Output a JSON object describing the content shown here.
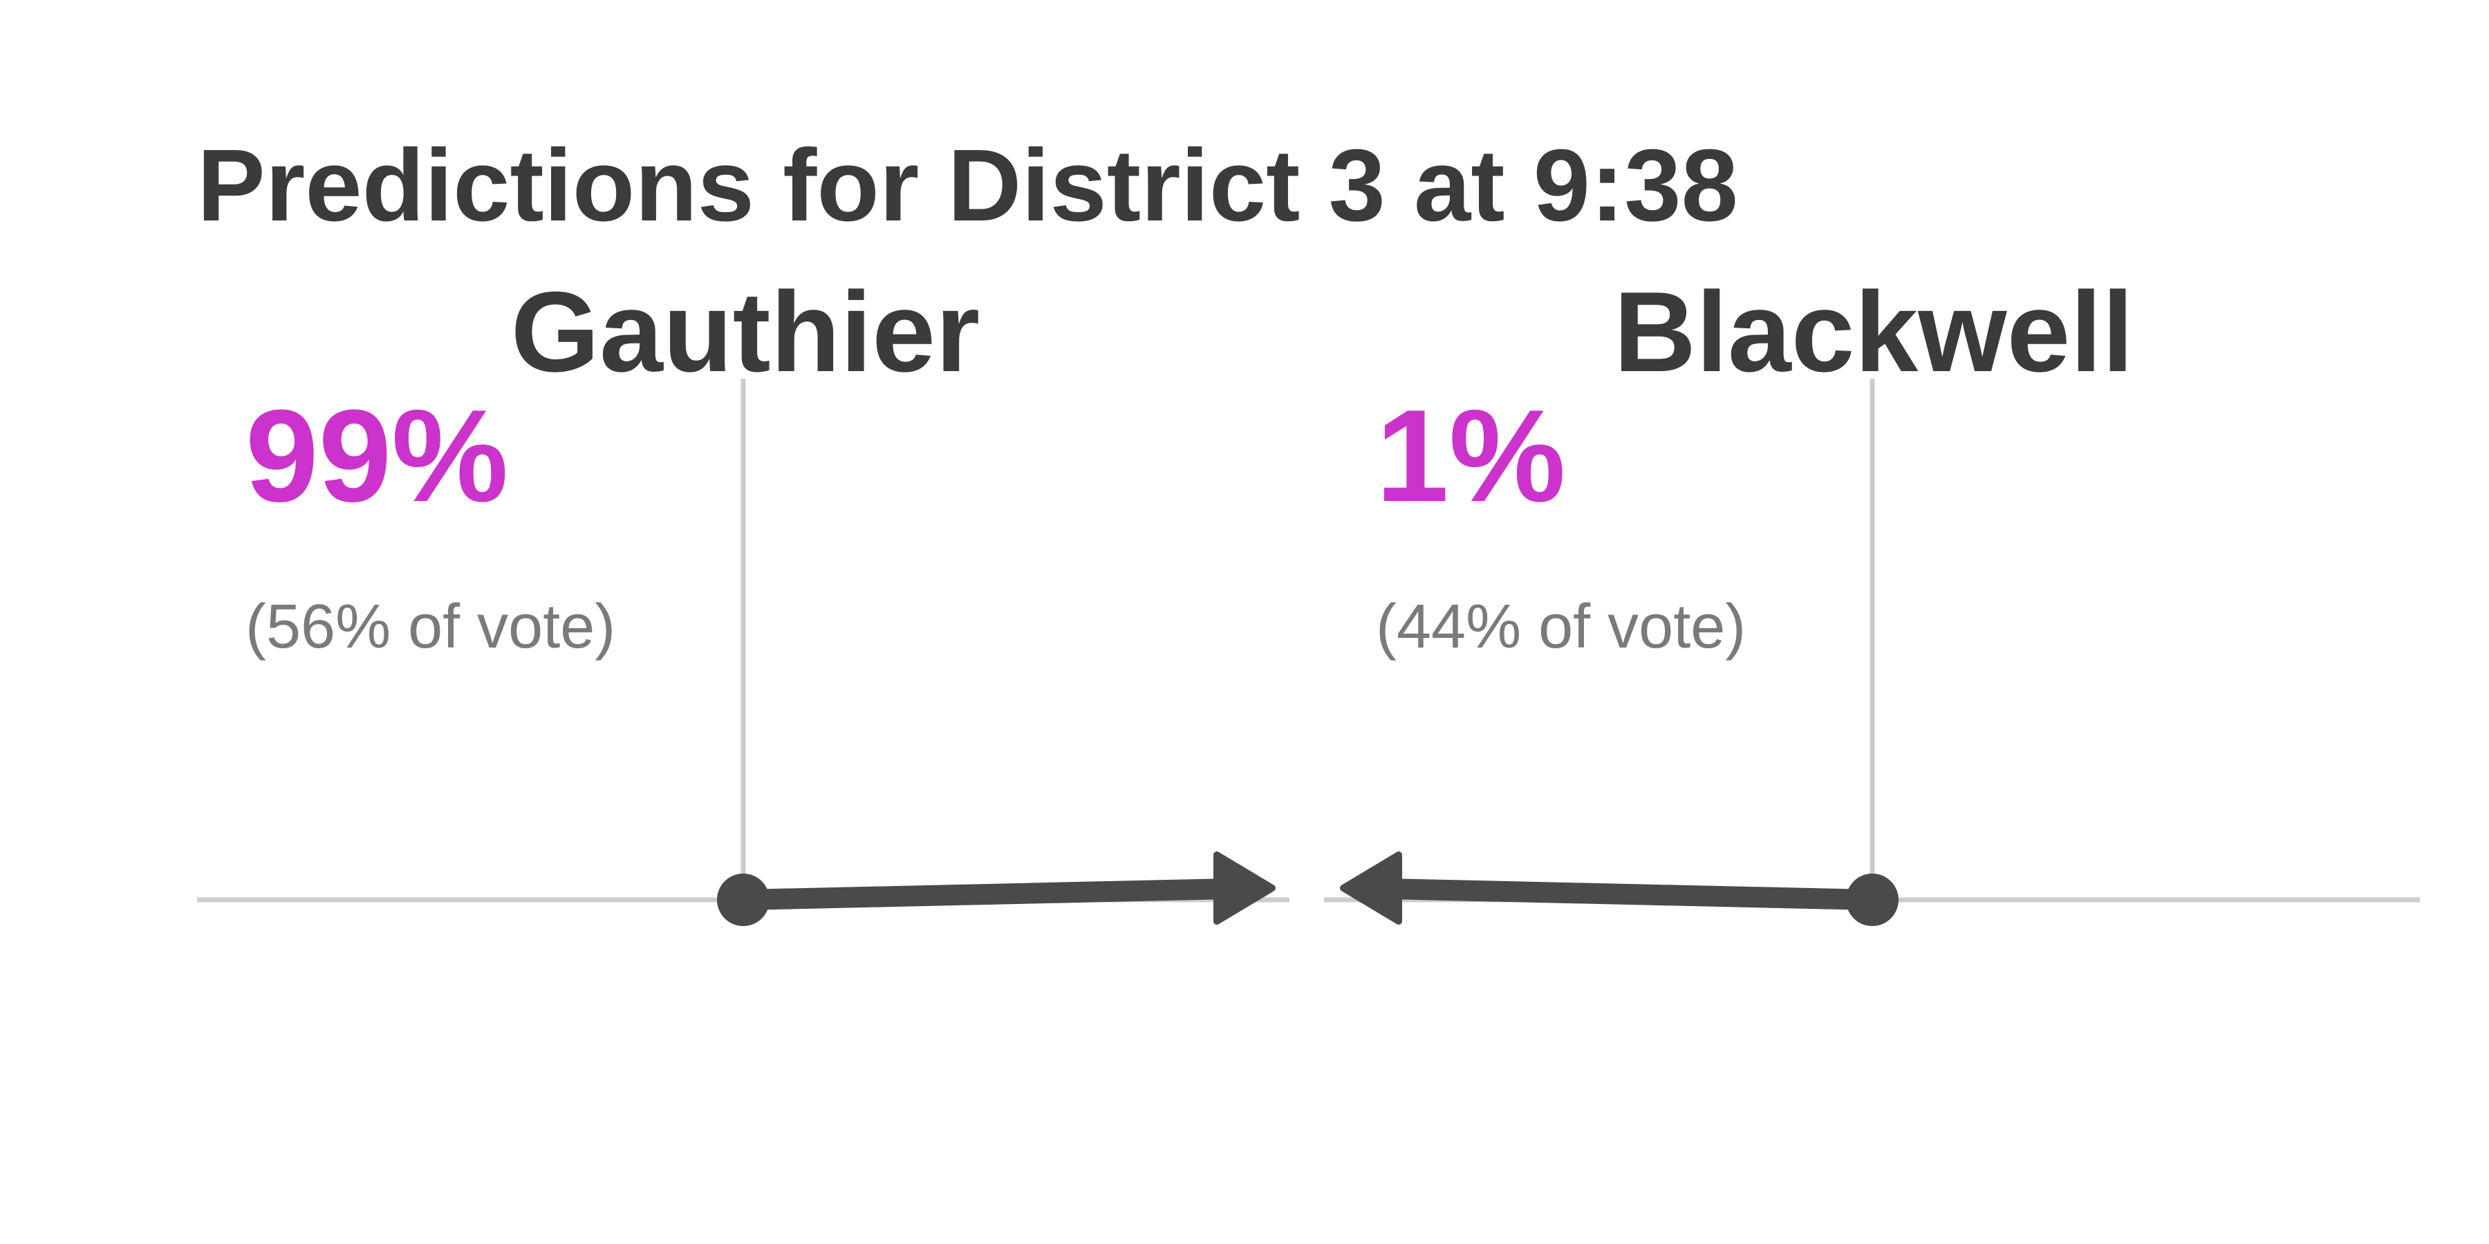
{
  "colors": {
    "text": "#3b3b3b",
    "accent": "#cc33cc",
    "muted": "#7a7a7a",
    "gridline": "#cccccc",
    "arrow": "#4a4a4a"
  },
  "chart_data": {
    "type": "arrow",
    "title": "Predictions for District 3 at 9:38",
    "candidates": [
      {
        "name": "Gauthier",
        "win_probability": "99%",
        "win_probability_value": 99,
        "vote_label": "(56% of vote)",
        "vote_share": 56,
        "arrow_direction": "right"
      },
      {
        "name": "Blackwell",
        "win_probability": "1%",
        "win_probability_value": 1,
        "vote_label": "(44% of vote)",
        "vote_share": 44,
        "arrow_direction": "left"
      }
    ]
  }
}
